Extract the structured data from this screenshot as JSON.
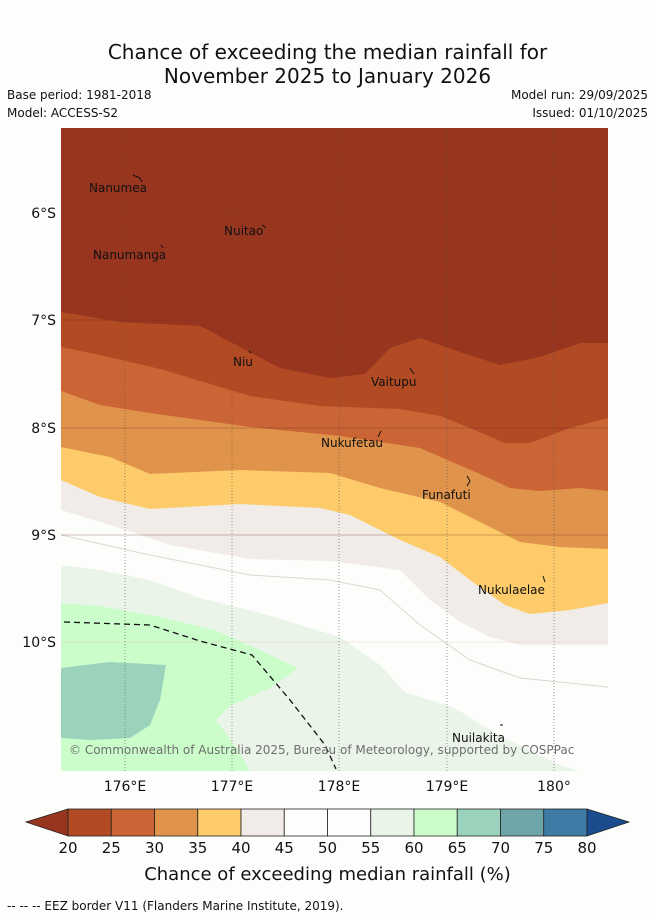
{
  "header": {
    "title_line1": "Chance of exceeding the median rainfall for",
    "title_line2": "November 2025 to January 2026",
    "base_period": "Base period: 1981-2018",
    "model": "Model: ACCESS-S2",
    "model_run": "Model run: 29/09/2025",
    "issued": "Issued: 01/10/2025"
  },
  "map": {
    "lat_labels": [
      "6°S",
      "7°S",
      "8°S",
      "9°S",
      "10°S"
    ],
    "lon_labels": [
      "176°E",
      "177°E",
      "178°E",
      "179°E",
      "180°"
    ],
    "places": [
      "Nanumea",
      "Nuitao",
      "Nanumanga",
      "Niu",
      "Vaitupu",
      "Nukufetau",
      "Funafuti",
      "Nukulaelae",
      "Nuilakita"
    ],
    "copyright": "© Commonwealth of Australia 2025, Bureau of Meteorology, supported by COSPPac"
  },
  "colorbar": {
    "ticks": [
      "20",
      "25",
      "30",
      "35",
      "40",
      "45",
      "50",
      "55",
      "60",
      "65",
      "70",
      "75",
      "80"
    ],
    "colors": [
      "#b24a24",
      "#cb6536",
      "#e0934b",
      "#fdcb6a",
      "#f1ece8",
      "#fdfefc",
      "#fdfefc",
      "#eaf4e9",
      "#cbfdcb",
      "#9ad2bb",
      "#6fa5a8",
      "#3e7ca5"
    ],
    "under_color": "#98351f",
    "over_color": "#1a4c8e",
    "label": "Chance of exceeding median rainfall (%)"
  },
  "footnote": "--  --  -- EEZ border V11 (Flanders Marine Institute, 2019)."
}
